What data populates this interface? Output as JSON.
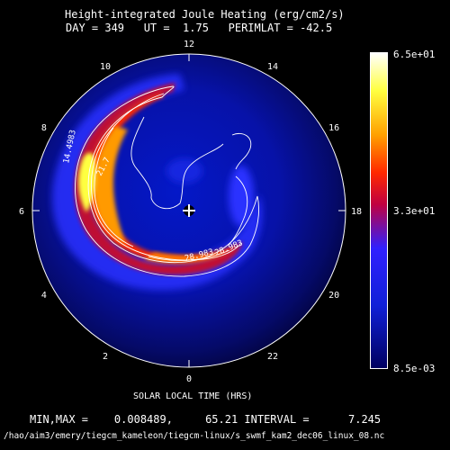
{
  "title": "Height-integrated Joule Heating (erg/cm2/s)",
  "subtitle": "DAY = 349   UT =  1.75   PERIMLAT = -42.5",
  "xlabel": "SOLAR LOCAL TIME (HRS)",
  "stats": "MIN,MAX =    0.008489,     65.21 INTERVAL =      7.245",
  "file_path": "/hao/aim3/emery/tiegcm_kameleon/tiegcm-linux/s_swmf_kam2_dec06_linux_08.nc",
  "colorbar": {
    "max_label": "6.5e+01",
    "mid_label": "3.3e+01",
    "min_label": "8.5e-03"
  },
  "chart_data": {
    "type": "heatmap",
    "projection": "polar",
    "title": "Height-integrated Joule Heating (erg/cm2/s)",
    "subtitle": "DAY = 349   UT =  1.75   PERIMLAT = -42.5",
    "xlabel": "SOLAR LOCAL TIME (HRS)",
    "local_time_ticks": [
      "12",
      "14",
      "16",
      "18",
      "20",
      "22",
      "0",
      "2",
      "4",
      "6",
      "8",
      "10"
    ],
    "contour_labels": [
      "14.4983",
      "21.7",
      "28.983",
      "28.983"
    ],
    "value_range": [
      0.008489,
      65.21
    ],
    "contour_interval": 7.245,
    "colorscale": [
      "#000060",
      "#1020d8",
      "#3020ff",
      "#c00040",
      "#ff2800",
      "#ffa000",
      "#ffff40",
      "#fffffe"
    ]
  }
}
